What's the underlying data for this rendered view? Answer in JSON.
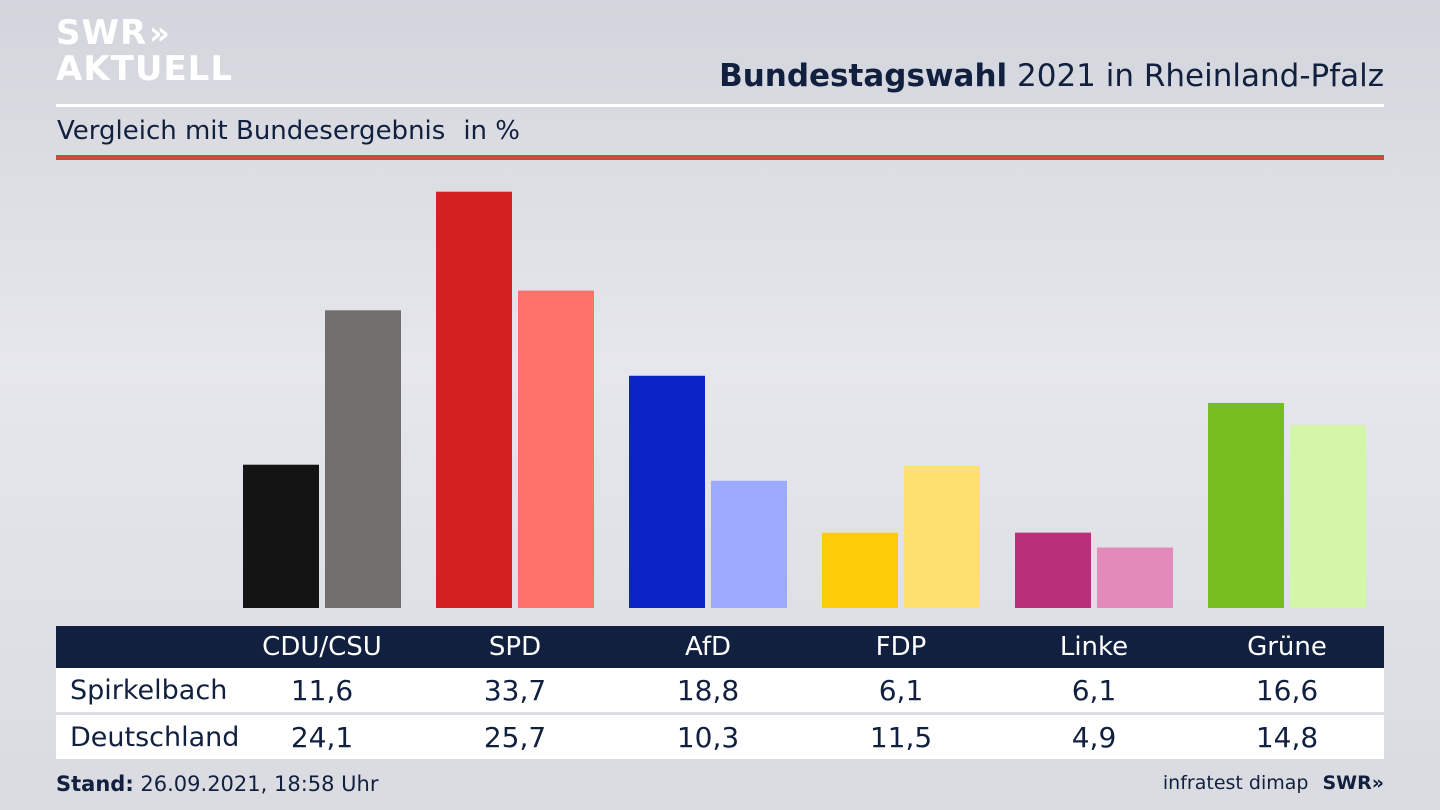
{
  "brand": {
    "logo_top": "SWR",
    "logo_chevrons": "»",
    "logo_bottom": "AKTUELL"
  },
  "header": {
    "title_bold": "Bundestagswahl",
    "title_rest": " 2021 in Rheinland-Pfalz",
    "subtitle": "Vergleich mit Bundesergebnis",
    "unit": "in %"
  },
  "chart_data": {
    "type": "bar",
    "categories": [
      "CDU/CSU",
      "SPD",
      "AfD",
      "FDP",
      "Linke",
      "Grüne"
    ],
    "series": [
      {
        "name": "Spirkelbach",
        "values": [
          11.6,
          33.7,
          18.8,
          6.1,
          6.1,
          16.6
        ]
      },
      {
        "name": "Deutschland",
        "values": [
          24.1,
          25.7,
          10.3,
          11.5,
          4.9,
          14.8
        ]
      }
    ],
    "colors": {
      "Spirkelbach": [
        "#141414",
        "#d42020",
        "#0a24c8",
        "#ffcc0a",
        "#b93078",
        "#78bd20"
      ],
      "Deutschland": [
        "#706f6d",
        "#ff726c",
        "#9eaaff",
        "#fde06e",
        "#e28bba",
        "#d3f6a8"
      ]
    },
    "ylim": [
      0,
      34
    ]
  },
  "table": {
    "headers": [
      "CDU/CSU",
      "SPD",
      "AfD",
      "FDP",
      "Linke",
      "Grüne"
    ],
    "rows": [
      {
        "label": "Spirkelbach",
        "values": [
          "11,6",
          "33,7",
          "18,8",
          "6,1",
          "6,1",
          "16,6"
        ]
      },
      {
        "label": "Deutschland",
        "values": [
          "24,1",
          "25,7",
          "10,3",
          "11,5",
          "4,9",
          "14,8"
        ]
      }
    ]
  },
  "footer": {
    "stand_label": "Stand:",
    "stand_value": " 26.09.2021, 18:58 Uhr",
    "source": "infratest dimap",
    "swr": "SWR»"
  }
}
